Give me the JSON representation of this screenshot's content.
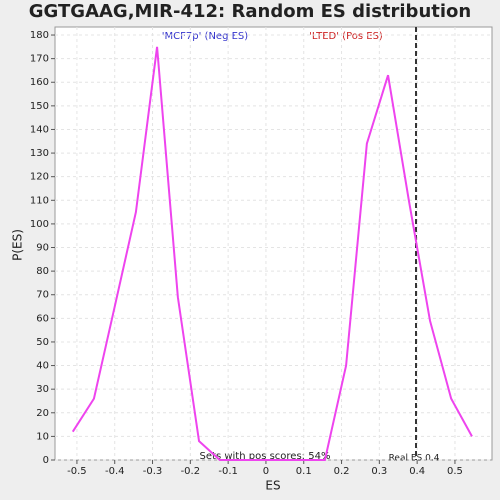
{
  "chart_data": {
    "type": "line",
    "title": "GGTGAAG,MIR-412: Random ES distribution",
    "x_label": "ES",
    "y_label": "P(ES)",
    "annotations": [
      "'MCF7p' (Neg ES)",
      "'LTED' (Pos ES)",
      "Sets with pos scores: 54%",
      "Real ES 0.4"
    ],
    "real_es_line": 0.397,
    "x": [
      -0.511,
      -0.455,
      -0.4,
      -0.344,
      -0.288,
      -0.233,
      -0.177,
      -0.122,
      -0.066,
      -0.011,
      0.045,
      0.1,
      0.156,
      0.212,
      0.267,
      0.323,
      0.378,
      0.434,
      0.49,
      0.545
    ],
    "series": [
      {
        "name": "P(ES)",
        "color": "#ee44ee",
        "values": [
          12,
          26,
          65,
          105,
          175,
          69,
          8,
          0,
          0,
          0,
          0,
          0,
          0,
          40,
          134,
          163,
          110,
          59,
          26,
          10
        ]
      }
    ],
    "xlim": [
      -0.558,
      0.598
    ],
    "xticks": [
      -0.5,
      -0.4,
      -0.3,
      -0.2,
      -0.1,
      0,
      0.1,
      0.2,
      0.3,
      0.4,
      0.5
    ],
    "ylim": [
      0,
      183.4
    ],
    "yticks": [
      0,
      10,
      20,
      30,
      40,
      50,
      60,
      70,
      80,
      90,
      100,
      110,
      120,
      130,
      140,
      150,
      160,
      170,
      180
    ],
    "grid": true
  }
}
